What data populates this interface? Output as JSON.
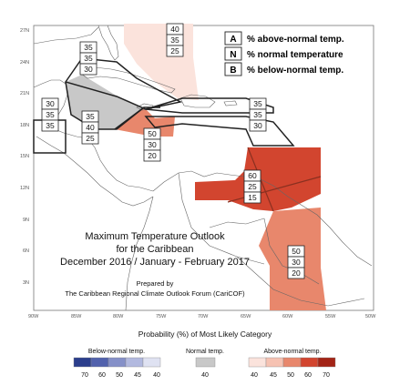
{
  "map": {
    "title_lines": [
      "Maximum Temperature Outlook",
      "for the Caribbean",
      "December 2016 / January - February 2017"
    ],
    "prepared_by": "Prepared by",
    "organisation": "The Caribbean Regional Climate Outlook Forum (CariCOF)",
    "lat_labels": [
      "27N",
      "24N",
      "21N",
      "18N",
      "15N",
      "12N",
      "9N",
      "6N",
      "3N"
    ],
    "lon_labels": [
      "90W",
      "85W",
      "80W",
      "75W",
      "70W",
      "65W",
      "60W",
      "55W",
      "50W"
    ]
  },
  "legend_key": [
    {
      "letter": "A",
      "text": "% above-normal temp."
    },
    {
      "letter": "N",
      "text": "% normal temperature"
    },
    {
      "letter": "B",
      "text": "% below-normal temp."
    }
  ],
  "forecast_boxes": [
    {
      "region": "bahamas",
      "A": "40",
      "N": "35",
      "B": "25"
    },
    {
      "region": "cuba",
      "A": "35",
      "N": "35",
      "B": "30"
    },
    {
      "region": "belize",
      "A": "30",
      "N": "35",
      "B": "35"
    },
    {
      "region": "western-caribbean",
      "A": "35",
      "N": "40",
      "B": "25"
    },
    {
      "region": "jamaica",
      "A": "50",
      "N": "30",
      "B": "20"
    },
    {
      "region": "hispaniola-puerto-rico",
      "A": "35",
      "N": "35",
      "B": "30"
    },
    {
      "region": "eastern-caribbean",
      "A": "60",
      "N": "25",
      "B": "15"
    },
    {
      "region": "guianas",
      "A": "50",
      "N": "30",
      "B": "20"
    }
  ],
  "colors": {
    "above_40": "#fbe3dc",
    "above_45": "#f6c2b2",
    "above_50": "#e8876c",
    "above_60": "#d2452f",
    "above_70": "#a32416",
    "normal_40": "#c8c8c8",
    "below_70": "#2b3e8c",
    "below_60": "#5262ad",
    "below_50": "#8590c8",
    "below_45": "#b2b9df",
    "below_40": "#dfe2f2"
  },
  "scale": {
    "heading": "Probability (%) of Most Likely Category",
    "below_label": "Below-normal temp.",
    "normal_label": "Normal temp.",
    "above_label": "Above-normal temp.",
    "below_ticks": [
      "70",
      "60",
      "50",
      "45",
      "40"
    ],
    "normal_tick": "40",
    "above_ticks": [
      "40",
      "45",
      "50",
      "60",
      "70"
    ]
  }
}
